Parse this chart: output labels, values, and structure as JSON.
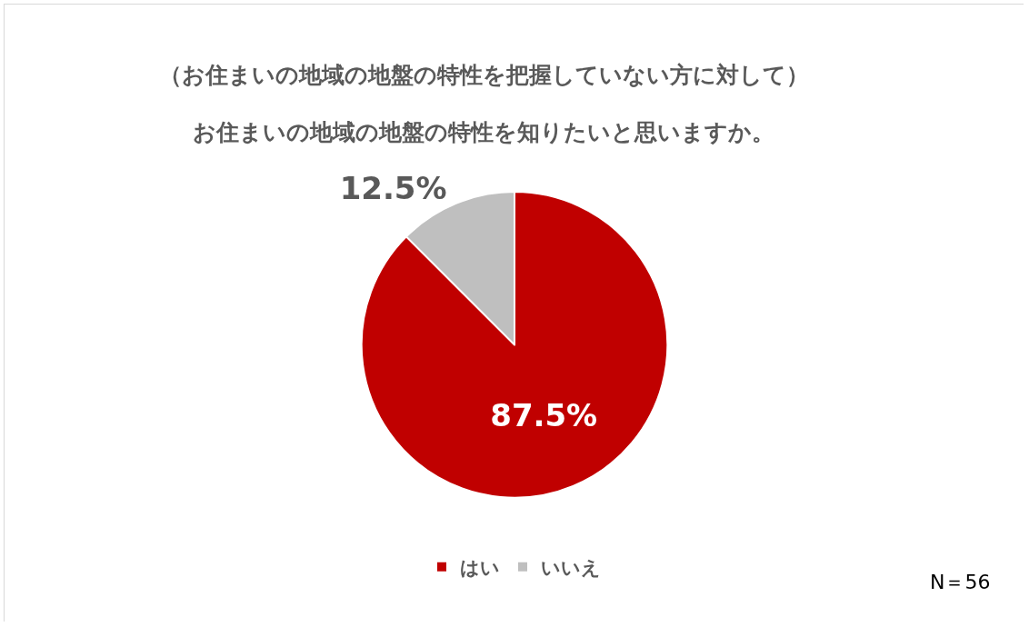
{
  "chart_data": {
    "type": "pie",
    "title": "（お住まいの地域の地盤の特性を把握していない方に対して）",
    "subtitle": "お住まいの地域の地盤の特性を知りたいと思いますか。",
    "categories": [
      "はい",
      "いいえ"
    ],
    "values": [
      87.5,
      12.5
    ],
    "colors": [
      "#c00000",
      "#bfbfbf"
    ],
    "value_labels": [
      "87.5%",
      "12.5%"
    ],
    "legend": "bottom",
    "annotations": [
      "N＝56"
    ]
  }
}
